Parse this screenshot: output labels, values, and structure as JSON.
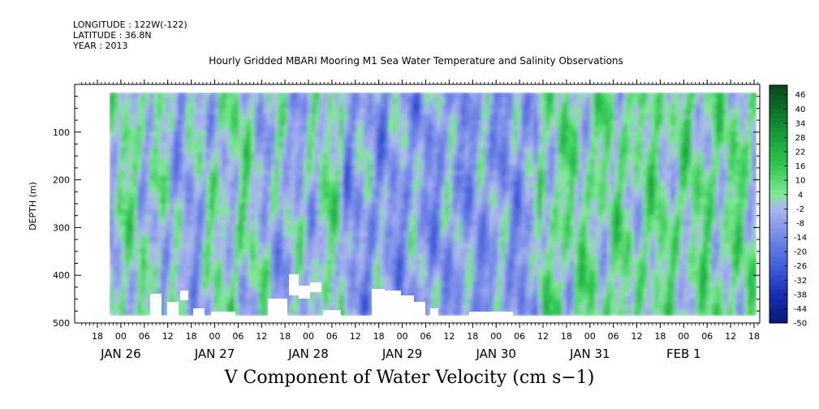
{
  "header": {
    "longitude": "LONGITUDE : 122W(-122)",
    "latitude": "LATITUDE : 36.8N",
    "year": "YEAR : 2013"
  },
  "chart_data": {
    "type": "heatmap",
    "title": "Hourly Gridded MBARI Mooring M1 Sea Water Temperature and Salinity Observations",
    "variable_label": "V Component of Water Velocity (cm s−1)",
    "ylabel": "DEPTH (m)",
    "ylim": [
      0,
      500
    ],
    "y_ticks": [
      100,
      200,
      300,
      400,
      500
    ],
    "x_hour_ticks": [
      "18",
      "00",
      "06",
      "12",
      "18",
      "00",
      "06",
      "12",
      "18",
      "00",
      "06",
      "12",
      "18",
      "00",
      "06",
      "12",
      "18",
      "00",
      "06",
      "12",
      "18",
      "00",
      "06",
      "12",
      "18",
      "00",
      "06",
      "12",
      "18"
    ],
    "x_date_labels": [
      "JAN 26",
      "JAN 27",
      "JAN 28",
      "JAN 29",
      "JAN 30",
      "JAN 31",
      "FEB  1"
    ],
    "x_start": "2013-01-26 18:00",
    "x_end": "2013-02-01 18:00",
    "colorbar_levels": [
      46,
      40,
      34,
      28,
      22,
      16,
      10,
      4,
      -2,
      -8,
      -14,
      -20,
      -26,
      -32,
      -38,
      -44,
      -50
    ],
    "colorbar_range": [
      -50,
      50
    ],
    "colors": {
      "strong_positive": "#0a5a1e",
      "positive": "#1faa3c",
      "weak_positive": "#7ae58e",
      "weak_negative": "#a9b3ef",
      "negative": "#6f82e2",
      "strong_negative": "#2a45c8",
      "most_negative": "#0a1778"
    },
    "regime_by_day": [
      {
        "day": "JAN 27",
        "dominant": "mixed",
        "range_cm_s": [
          -20,
          16
        ]
      },
      {
        "day": "JAN 28",
        "dominant": "mixed",
        "range_cm_s": [
          -20,
          16
        ]
      },
      {
        "day": "JAN 29",
        "dominant": "negative",
        "range_cm_s": [
          -26,
          10
        ]
      },
      {
        "day": "JAN 30",
        "dominant": "negative",
        "range_cm_s": [
          -32,
          10
        ]
      },
      {
        "day": "JAN 31",
        "dominant": "positive",
        "range_cm_s": [
          -20,
          22
        ]
      },
      {
        "day": "FEB 1",
        "dominant": "positive",
        "range_cm_s": [
          -20,
          22
        ]
      }
    ]
  }
}
